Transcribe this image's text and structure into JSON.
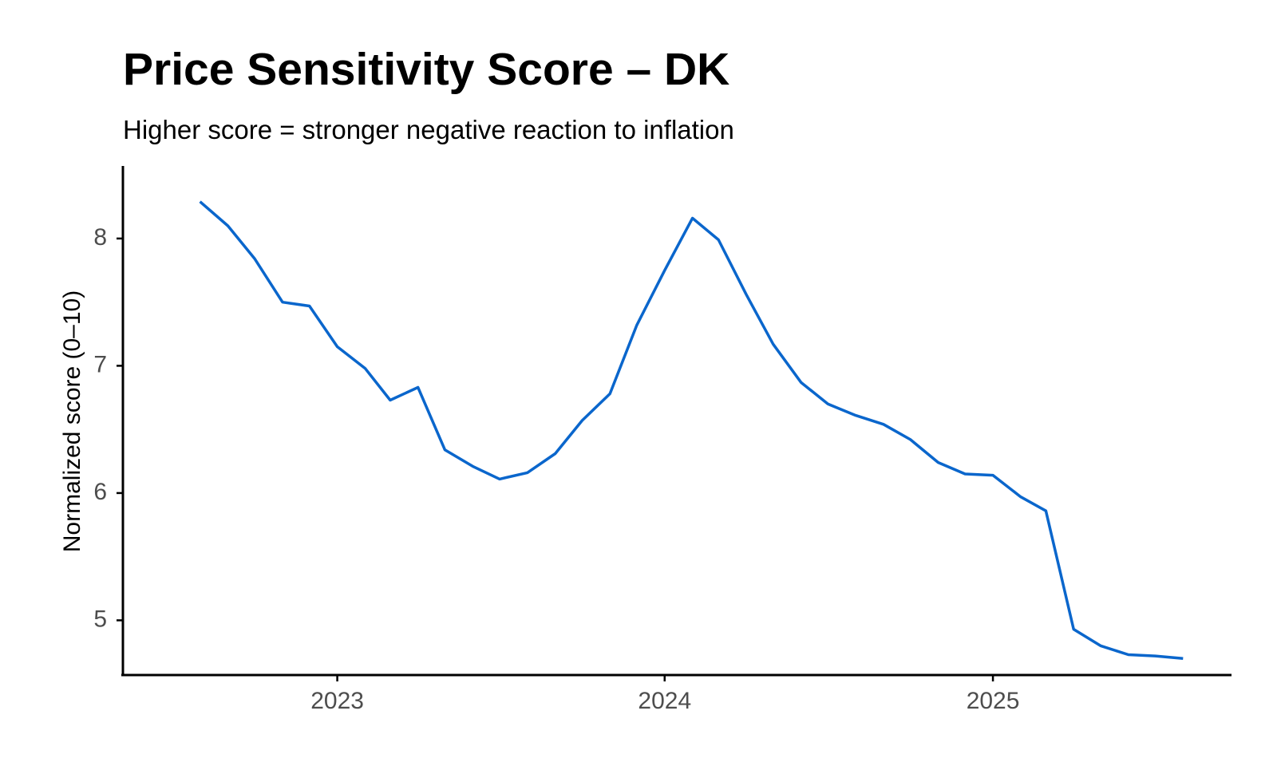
{
  "chart_data": {
    "type": "line",
    "title": "Price Sensitivity Score – DK",
    "subtitle": "Higher score = stronger negative reaction to inflation",
    "xlabel": "",
    "ylabel": "Normalized score (0–10)",
    "x_ticks": [
      "2023",
      "2024",
      "2025"
    ],
    "y_ticks": [
      5,
      6,
      7,
      8
    ],
    "ylim": [
      4.57,
      8.57
    ],
    "xlim": [
      "2022-05-07",
      "2025-09-24"
    ],
    "grid": false,
    "line_color": "#0A66CC",
    "series": [
      {
        "x": [
          "2022-08-01",
          "2022-09-01",
          "2022-10-01",
          "2022-11-01",
          "2022-12-01",
          "2023-01-01",
          "2023-02-01",
          "2023-03-01",
          "2023-04-01",
          "2023-05-01",
          "2023-06-01",
          "2023-07-01",
          "2023-08-01",
          "2023-09-01",
          "2023-10-01",
          "2023-11-01",
          "2023-12-01",
          "2024-01-01",
          "2024-02-01",
          "2024-03-01",
          "2024-04-01",
          "2024-05-01",
          "2024-06-01",
          "2024-07-01",
          "2024-08-01",
          "2024-09-01",
          "2024-10-01",
          "2024-11-01",
          "2024-12-01",
          "2025-01-01",
          "2025-02-01",
          "2025-03-01",
          "2025-04-01",
          "2025-05-01",
          "2025-06-01",
          "2025-07-01",
          "2025-08-01"
        ],
        "values": [
          8.29,
          8.1,
          7.84,
          7.5,
          7.47,
          7.15,
          6.98,
          6.73,
          6.83,
          6.34,
          6.21,
          6.11,
          6.16,
          6.31,
          6.57,
          6.78,
          7.32,
          7.75,
          8.16,
          7.99,
          7.56,
          7.17,
          6.87,
          6.7,
          6.61,
          6.54,
          6.42,
          6.24,
          6.15,
          6.14,
          5.97,
          5.86,
          4.93,
          4.8,
          4.73,
          4.72,
          4.7
        ]
      }
    ]
  }
}
